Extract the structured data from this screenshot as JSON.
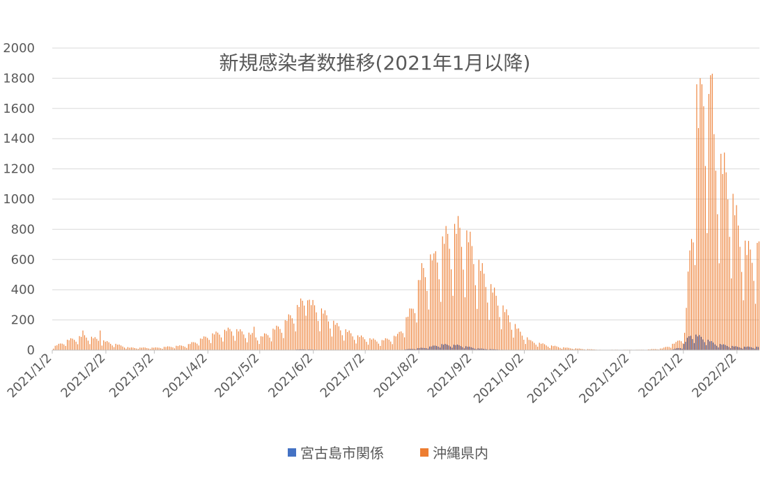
{
  "chart_data": {
    "type": "bar",
    "title": "新規感染者数推移(2021年1月以降)",
    "ylim": [
      0,
      2000
    ],
    "y_ticks": [
      0,
      200,
      400,
      600,
      800,
      1000,
      1200,
      1400,
      1600,
      1800,
      2000
    ],
    "x_tick_labels": [
      "2021/1/2",
      "2021/2/2",
      "2021/3/2",
      "2021/4/2",
      "2021/5/2",
      "2021/6/2",
      "2021/7/2",
      "2021/8/2",
      "2021/9/2",
      "2021/10/2",
      "2021/11/2",
      "2021/12/2",
      "2022/1/2",
      "2022/2/2"
    ],
    "grid": true,
    "legend_position": "bottom",
    "series": [
      {
        "name": "宮古島市関係",
        "color": "#4472C4",
        "anchors": [
          [
            "2021/1/2",
            0
          ],
          [
            "2021/5/15",
            0
          ],
          [
            "2021/5/27",
            5
          ],
          [
            "2021/6/5",
            2
          ],
          [
            "2021/7/20",
            0
          ],
          [
            "2021/8/5",
            15
          ],
          [
            "2021/8/15",
            35
          ],
          [
            "2021/8/25",
            30
          ],
          [
            "2021/9/5",
            10
          ],
          [
            "2021/9/20",
            2
          ],
          [
            "2021/10/2",
            0
          ],
          [
            "2021/12/25",
            0
          ],
          [
            "2022/1/1",
            20
          ],
          [
            "2022/1/6",
            100
          ],
          [
            "2022/1/12",
            80
          ],
          [
            "2022/1/20",
            40
          ],
          [
            "2022/2/2",
            20
          ],
          [
            "2022/2/14",
            20
          ]
        ]
      },
      {
        "name": "沖縄県内",
        "color": "#ED7D31",
        "anchors": [
          [
            "2021/1/2",
            20
          ],
          [
            "2021/1/10",
            60
          ],
          [
            "2021/1/20",
            90
          ],
          [
            "2021/2/2",
            50
          ],
          [
            "2021/2/15",
            15
          ],
          [
            "2021/3/2",
            15
          ],
          [
            "2021/3/20",
            30
          ],
          [
            "2021/4/2",
            90
          ],
          [
            "2021/4/15",
            130
          ],
          [
            "2021/5/2",
            80
          ],
          [
            "2021/5/15",
            160
          ],
          [
            "2021/5/27",
            310
          ],
          [
            "2021/6/5",
            250
          ],
          [
            "2021/6/15",
            150
          ],
          [
            "2021/6/25",
            90
          ],
          [
            "2021/7/10",
            55
          ],
          [
            "2021/7/20",
            90
          ],
          [
            "2021/7/28",
            250
          ],
          [
            "2021/8/3",
            480
          ],
          [
            "2021/8/10",
            580
          ],
          [
            "2021/8/18",
            700
          ],
          [
            "2021/8/24",
            740
          ],
          [
            "2021/8/30",
            680
          ],
          [
            "2021/9/5",
            520
          ],
          [
            "2021/9/12",
            380
          ],
          [
            "2021/9/20",
            240
          ],
          [
            "2021/9/28",
            120
          ],
          [
            "2021/10/5",
            55
          ],
          [
            "2021/10/15",
            30
          ],
          [
            "2021/10/25",
            15
          ],
          [
            "2021/11/3",
            8
          ],
          [
            "2021/11/15",
            2
          ],
          [
            "2021/12/10",
            3
          ],
          [
            "2021/12/20",
            10
          ],
          [
            "2021/12/28",
            45
          ],
          [
            "2022/1/2",
            100
          ],
          [
            "2022/1/5",
            600
          ],
          [
            "2022/1/9",
            1300
          ],
          [
            "2022/1/13",
            1700
          ],
          [
            "2022/1/17",
            1400
          ],
          [
            "2022/1/22",
            1150
          ],
          [
            "2022/1/27",
            1050
          ],
          [
            "2022/2/2",
            750
          ],
          [
            "2022/2/7",
            600
          ],
          [
            "2022/2/14",
            620
          ]
        ],
        "peaks": [
          [
            "2021/1/19",
            130
          ],
          [
            "2021/1/29",
            130
          ],
          [
            "2021/4/28",
            155
          ],
          [
            "2021/5/29",
            330
          ],
          [
            "2021/8/10",
            640
          ],
          [
            "2021/8/25",
            810
          ],
          [
            "2022/1/9",
            1760
          ],
          [
            "2022/1/17",
            1820
          ],
          [
            "2022/1/18",
            1830
          ],
          [
            "2022/2/14",
            720
          ]
        ]
      }
    ]
  }
}
